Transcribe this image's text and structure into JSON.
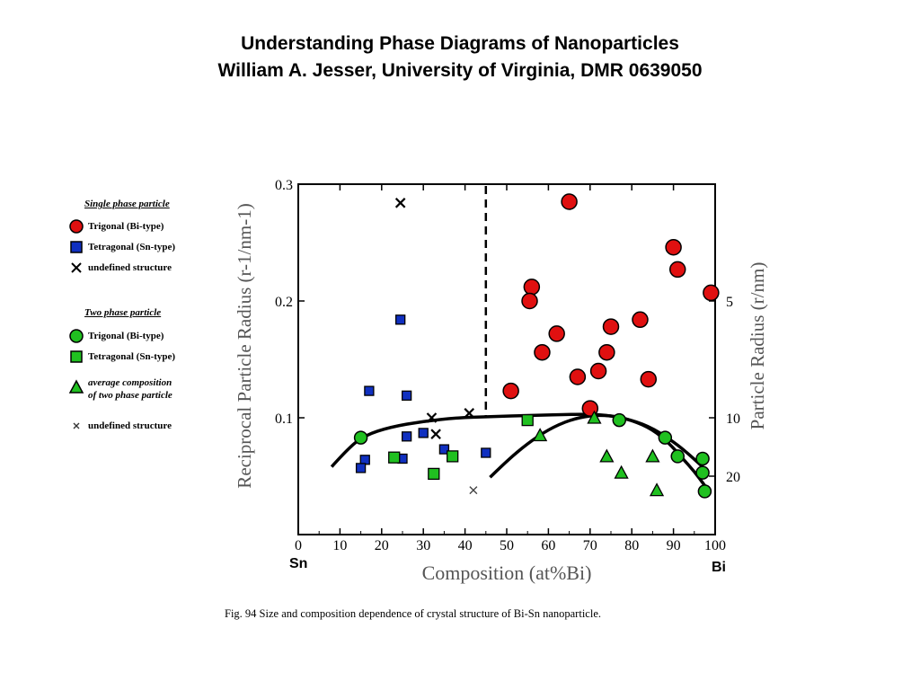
{
  "slide": {
    "title_line1": "Understanding Phase Diagrams of Nanoparticles",
    "title_line2": "William A. Jesser, University of Virginia, DMR  0639050"
  },
  "legend": {
    "single_header": "Single phase particle",
    "single_trigonal": "Trigonal (Bi-type)",
    "single_tetragonal": "Tetragonal (Sn-type)",
    "single_undefined": "undefined structure",
    "two_header": "Two phase particle",
    "two_trigonal": "Trigonal (Bi-type)",
    "two_tetragonal": "Tetragonal (Sn-type)",
    "avg_line1": "average composition",
    "avg_line2": "of two phase particle",
    "two_undefined": "undefined structure"
  },
  "caption": "Fig. 94 Size and composition dependence of crystal structure of Bi-Sn nanoparticle.",
  "colors": {
    "trigonal_single": "#e01010",
    "tetragonal_single": "#1030c0",
    "two_phase_green": "#20c020",
    "axis": "#000000"
  },
  "chart_data": {
    "type": "scatter",
    "xlabel": "Composition (at%Bi)",
    "ylabel_left": "Reciprocal Particle Radius (r-1/nm-1)",
    "ylabel_right": "Particle Radius (r/nm)",
    "x_end_left": "Sn",
    "x_end_right": "Bi",
    "xlim": [
      0,
      100
    ],
    "ylim": [
      0,
      0.3
    ],
    "xticks": [
      "0",
      "10",
      "20",
      "30",
      "40",
      "50",
      "60",
      "70",
      "80",
      "90",
      "100"
    ],
    "yticks_left": [
      "0.1",
      "0.2",
      "0.3"
    ],
    "yticks_right": [
      "5",
      "10",
      "20"
    ],
    "grid": false,
    "divider_x": 45,
    "series": [
      {
        "name": "Trigonal (Bi-type)",
        "group": "single",
        "marker": "circle",
        "points": [
          [
            65,
            0.285
          ],
          [
            56,
            0.212
          ],
          [
            55.5,
            0.2
          ],
          [
            90,
            0.246
          ],
          [
            91,
            0.227
          ],
          [
            99,
            0.207
          ],
          [
            62,
            0.172
          ],
          [
            58.5,
            0.156
          ],
          [
            74,
            0.156
          ],
          [
            75,
            0.178
          ],
          [
            82,
            0.184
          ],
          [
            67,
            0.135
          ],
          [
            72,
            0.14
          ],
          [
            84,
            0.133
          ],
          [
            51,
            0.123
          ],
          [
            70,
            0.108
          ]
        ]
      },
      {
        "name": "Tetragonal (Sn-type)",
        "group": "single",
        "marker": "square",
        "points": [
          [
            24.5,
            0.184
          ],
          [
            17,
            0.123
          ],
          [
            26,
            0.119
          ],
          [
            30,
            0.087
          ],
          [
            26,
            0.084
          ],
          [
            35,
            0.073
          ],
          [
            45,
            0.07
          ],
          [
            25,
            0.065
          ],
          [
            16,
            0.064
          ],
          [
            15,
            0.057
          ]
        ]
      },
      {
        "name": "undefined structure",
        "group": "single",
        "marker": "x",
        "points": [
          [
            24.5,
            0.284
          ],
          [
            32,
            0.1
          ],
          [
            33,
            0.086
          ],
          [
            41,
            0.104
          ]
        ]
      },
      {
        "name": "Trigonal (Bi-type)",
        "group": "two",
        "marker": "circle",
        "points": [
          [
            15,
            0.083
          ],
          [
            77,
            0.098
          ],
          [
            88,
            0.083
          ],
          [
            91,
            0.067
          ],
          [
            97,
            0.065
          ],
          [
            97,
            0.053
          ],
          [
            97.5,
            0.037
          ]
        ]
      },
      {
        "name": "Tetragonal (Sn-type)",
        "group": "two",
        "marker": "square",
        "points": [
          [
            55,
            0.098
          ],
          [
            23,
            0.066
          ],
          [
            37,
            0.067
          ],
          [
            32.5,
            0.052
          ]
        ]
      },
      {
        "name": "average composition of two phase particle",
        "group": "two",
        "marker": "triangle",
        "points": [
          [
            71,
            0.1
          ],
          [
            58,
            0.085
          ],
          [
            74,
            0.067
          ],
          [
            77.5,
            0.053
          ],
          [
            85,
            0.067
          ],
          [
            86,
            0.038
          ]
        ]
      },
      {
        "name": "undefined structure",
        "group": "two",
        "marker": "x-small",
        "points": [
          [
            42,
            0.038
          ]
        ]
      }
    ],
    "curves": [
      {
        "points": [
          [
            8,
            0.058
          ],
          [
            12,
            0.074
          ],
          [
            16,
            0.085
          ],
          [
            22,
            0.092
          ],
          [
            30,
            0.097
          ],
          [
            38,
            0.1
          ],
          [
            46,
            0.101
          ],
          [
            56,
            0.102
          ],
          [
            66,
            0.103
          ],
          [
            72,
            0.103
          ],
          [
            78,
            0.1
          ],
          [
            84,
            0.093
          ],
          [
            89,
            0.082
          ],
          [
            93,
            0.071
          ],
          [
            97,
            0.058
          ]
        ]
      },
      {
        "points": [
          [
            46,
            0.049
          ],
          [
            50,
            0.063
          ],
          [
            55,
            0.078
          ],
          [
            60,
            0.09
          ],
          [
            65,
            0.098
          ],
          [
            70,
            0.102
          ],
          [
            75,
            0.102
          ],
          [
            80,
            0.098
          ],
          [
            85,
            0.09
          ],
          [
            89,
            0.078
          ],
          [
            92,
            0.066
          ],
          [
            95,
            0.054
          ],
          [
            97.5,
            0.042
          ]
        ]
      }
    ]
  }
}
